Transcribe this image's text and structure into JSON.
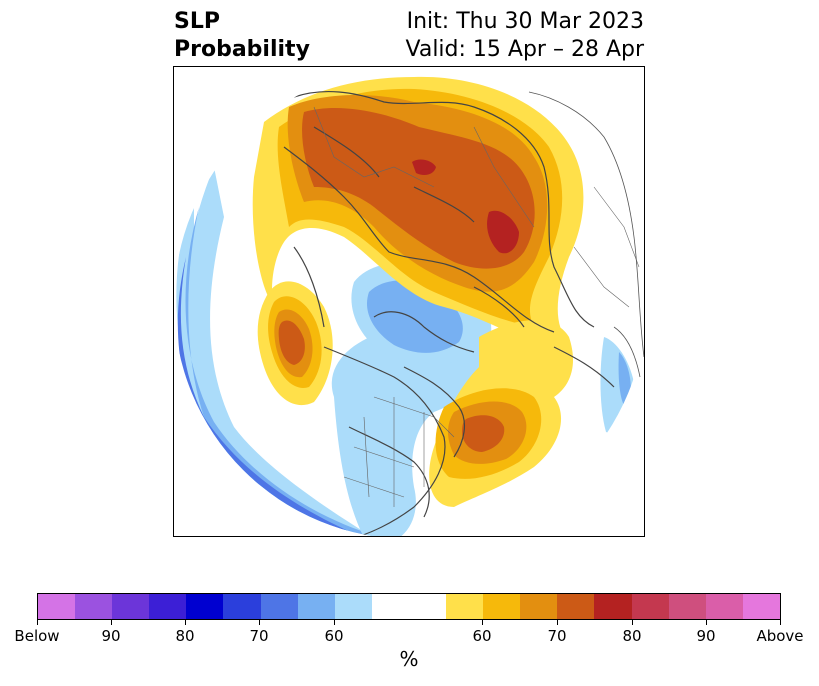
{
  "title": {
    "left_line1": "SLP",
    "left_line2": "Probability",
    "right_line1": "Init: Thu 30 Mar 2023",
    "right_line2": "Valid: 15 Apr – 28 Apr"
  },
  "colorbar": {
    "colors": [
      "#d473e6",
      "#9b52e0",
      "#6c35d9",
      "#3c1fd6",
      "#0000d0",
      "#2b3fdc",
      "#4e75e6",
      "#77b0f2",
      "#abdcfa",
      "#ffffff",
      "#ffffff",
      "#ffe04a",
      "#f6b90b",
      "#e38f10",
      "#cc5a16",
      "#b42221",
      "#c4384f",
      "#cf4f7e",
      "#da5ea9",
      "#e577dd"
    ],
    "tick_labels": [
      "Below",
      "90",
      "80",
      "70",
      "60",
      "60",
      "70",
      "80",
      "90",
      "Above"
    ],
    "units": "%"
  },
  "map": {
    "background": "#ffffff",
    "coastline_color": "#444444",
    "legend_colors": {
      "below_60": "#abdcfa",
      "below_70": "#77b0f2",
      "below_80": "#4e75e6",
      "above_60": "#ffe04a",
      "above_70": "#f6b90b",
      "above_75": "#e38f10",
      "above_80": "#cc5a16",
      "above_85": "#b42221"
    }
  }
}
